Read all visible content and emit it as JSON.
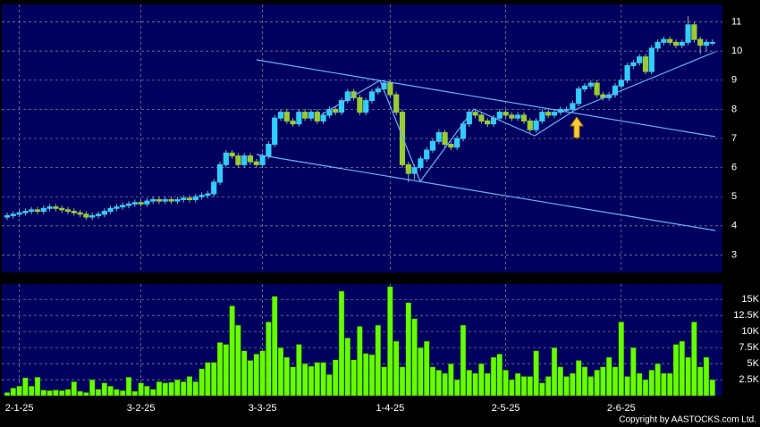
{
  "chart_data": {
    "type": "candlestick",
    "categories": [
      null,
      null,
      "2-1-25",
      null,
      null,
      null,
      null,
      null,
      null,
      null,
      null,
      null,
      null,
      null,
      null,
      null,
      null,
      null,
      null,
      null,
      null,
      null,
      "3-2-25",
      null,
      null,
      null,
      null,
      null,
      null,
      null,
      null,
      null,
      null,
      null,
      null,
      null,
      null,
      null,
      null,
      null,
      null,
      null,
      "3-3-25",
      null,
      null,
      null,
      null,
      null,
      null,
      null,
      null,
      null,
      null,
      null,
      null,
      null,
      null,
      null,
      null,
      null,
      null,
      null,
      null,
      "1-4-25",
      null,
      null,
      null,
      null,
      null,
      null,
      null,
      null,
      null,
      null,
      null,
      null,
      null,
      null,
      null,
      null,
      null,
      null,
      "2-5-25",
      null,
      null,
      null,
      null,
      null,
      null,
      null,
      null,
      null,
      null,
      null,
      null,
      null,
      null,
      null,
      null,
      null,
      null,
      "2-6-25",
      null,
      null,
      null,
      null,
      null,
      null,
      null,
      null,
      null,
      null,
      null,
      null,
      null,
      null,
      null
    ],
    "open": [
      4.3,
      4.35,
      4.4,
      4.45,
      4.5,
      4.55,
      4.5,
      4.6,
      4.65,
      4.6,
      4.55,
      4.5,
      4.45,
      4.4,
      4.3,
      4.35,
      4.4,
      4.5,
      4.6,
      4.65,
      4.7,
      4.75,
      4.8,
      4.75,
      4.85,
      4.9,
      4.85,
      4.9,
      4.85,
      4.9,
      4.95,
      4.9,
      5.0,
      5.05,
      5.1,
      5.5,
      6.1,
      6.5,
      6.4,
      6.1,
      6.4,
      6.2,
      6.1,
      6.4,
      6.8,
      7.7,
      7.9,
      7.6,
      7.5,
      7.9,
      7.7,
      7.9,
      7.6,
      7.8,
      8.0,
      7.9,
      8.3,
      8.6,
      8.4,
      7.9,
      8.3,
      8.6,
      8.7,
      8.9,
      8.5,
      7.9,
      6.1,
      5.8,
      6.0,
      6.3,
      6.6,
      6.9,
      7.2,
      6.8,
      6.7,
      7.0,
      7.5,
      7.9,
      7.8,
      7.6,
      7.5,
      7.7,
      7.9,
      7.8,
      7.7,
      7.8,
      7.6,
      7.3,
      7.6,
      7.9,
      7.8,
      7.9,
      8.0,
      8.0,
      8.2,
      8.7,
      8.8,
      8.9,
      8.5,
      8.4,
      8.5,
      8.8,
      9.0,
      9.5,
      9.6,
      9.8,
      9.3,
      10.1,
      10.3,
      10.4,
      10.3,
      10.2,
      10.3,
      10.9,
      10.4,
      10.2,
      10.3
    ],
    "high": [
      4.45,
      4.5,
      4.55,
      4.6,
      4.65,
      4.65,
      4.7,
      4.75,
      4.75,
      4.7,
      4.65,
      4.6,
      4.55,
      4.5,
      4.45,
      4.5,
      4.6,
      4.7,
      4.75,
      4.8,
      4.85,
      4.9,
      4.9,
      4.95,
      5.0,
      5.0,
      5.0,
      5.0,
      5.0,
      5.05,
      5.05,
      5.1,
      5.15,
      5.2,
      5.6,
      6.2,
      6.6,
      6.6,
      6.5,
      6.5,
      6.5,
      6.3,
      6.5,
      6.9,
      7.8,
      8.0,
      8.0,
      7.7,
      8.0,
      8.0,
      8.0,
      8.0,
      7.9,
      8.1,
      8.1,
      8.4,
      8.7,
      8.7,
      8.5,
      8.4,
      8.7,
      8.8,
      9.0,
      9.0,
      8.6,
      8.0,
      6.2,
      6.1,
      6.4,
      6.7,
      7.0,
      7.3,
      7.3,
      6.9,
      7.1,
      7.6,
      8.0,
      8.0,
      7.9,
      7.7,
      7.8,
      8.0,
      8.0,
      7.9,
      7.9,
      7.9,
      7.7,
      7.7,
      8.0,
      8.0,
      8.0,
      8.1,
      8.1,
      8.3,
      8.8,
      8.9,
      9.0,
      9.0,
      8.6,
      8.6,
      8.9,
      9.1,
      9.6,
      9.7,
      9.9,
      9.9,
      10.2,
      10.4,
      10.5,
      10.5,
      10.4,
      10.4,
      11.2,
      11.0,
      10.5,
      10.4,
      10.4
    ],
    "low": [
      4.2,
      4.25,
      4.3,
      4.35,
      4.4,
      4.4,
      4.4,
      4.5,
      4.5,
      4.45,
      4.4,
      4.35,
      4.3,
      4.2,
      4.2,
      4.25,
      4.3,
      4.4,
      4.5,
      4.55,
      4.6,
      4.65,
      4.65,
      4.65,
      4.75,
      4.75,
      4.75,
      4.75,
      4.75,
      4.8,
      4.8,
      4.8,
      4.9,
      4.95,
      5.0,
      5.4,
      6.0,
      6.3,
      6.0,
      6.0,
      6.1,
      6.0,
      6.0,
      6.3,
      6.7,
      7.6,
      7.5,
      7.4,
      7.4,
      7.6,
      7.6,
      7.5,
      7.5,
      7.7,
      7.8,
      7.8,
      8.2,
      8.3,
      7.8,
      7.8,
      8.2,
      8.5,
      8.6,
      8.4,
      7.8,
      6.0,
      5.5,
      5.6,
      5.9,
      6.2,
      6.5,
      6.8,
      6.7,
      6.6,
      6.6,
      6.9,
      7.4,
      7.7,
      7.5,
      7.4,
      7.4,
      7.6,
      7.7,
      7.6,
      7.6,
      7.5,
      7.2,
      7.2,
      7.5,
      7.7,
      7.7,
      7.8,
      7.9,
      7.9,
      8.1,
      8.6,
      8.7,
      8.4,
      8.3,
      8.3,
      8.4,
      8.7,
      8.9,
      9.4,
      9.5,
      9.2,
      9.2,
      10.0,
      10.2,
      10.2,
      10.1,
      10.1,
      10.2,
      10.3,
      9.9,
      10.0,
      10.2
    ],
    "close": [
      4.35,
      4.4,
      4.45,
      4.5,
      4.55,
      4.5,
      4.6,
      4.65,
      4.6,
      4.55,
      4.5,
      4.45,
      4.4,
      4.3,
      4.35,
      4.4,
      4.5,
      4.6,
      4.65,
      4.7,
      4.75,
      4.8,
      4.75,
      4.85,
      4.9,
      4.85,
      4.9,
      4.85,
      4.9,
      4.95,
      4.9,
      5.0,
      5.05,
      5.1,
      5.5,
      6.1,
      6.5,
      6.4,
      6.1,
      6.4,
      6.2,
      6.1,
      6.4,
      6.8,
      7.7,
      7.9,
      7.6,
      7.5,
      7.9,
      7.7,
      7.9,
      7.6,
      7.8,
      8.0,
      7.9,
      8.3,
      8.6,
      8.4,
      7.9,
      8.3,
      8.6,
      8.7,
      8.9,
      8.5,
      7.9,
      6.1,
      5.8,
      6.0,
      6.3,
      6.6,
      6.9,
      7.2,
      6.8,
      6.7,
      7.0,
      7.5,
      7.9,
      7.8,
      7.6,
      7.5,
      7.7,
      7.9,
      7.8,
      7.7,
      7.8,
      7.6,
      7.3,
      7.6,
      7.9,
      7.8,
      7.9,
      8.0,
      8.0,
      8.2,
      8.7,
      8.8,
      8.9,
      8.5,
      8.4,
      8.5,
      8.8,
      9.0,
      9.5,
      9.6,
      9.8,
      9.3,
      10.1,
      10.3,
      10.4,
      10.3,
      10.2,
      10.3,
      10.9,
      10.4,
      10.2,
      10.3,
      10.3
    ],
    "volume": [
      500,
      1200,
      1500,
      2800,
      1500,
      2900,
      900,
      800,
      900,
      800,
      1000,
      2200,
      700,
      500,
      2500,
      1000,
      2000,
      1500,
      1000,
      800,
      2900,
      700,
      2000,
      1500,
      1000,
      2200,
      2000,
      2100,
      2500,
      2200,
      3000,
      2200,
      4200,
      5200,
      5200,
      8300,
      8000,
      14000,
      11000,
      7000,
      5500,
      6500,
      7000,
      11500,
      15500,
      7500,
      6000,
      4500,
      8000,
      5000,
      4600,
      5200,
      5200,
      3300,
      5600,
      16300,
      9000,
      5600,
      10800,
      6600,
      6400,
      11000,
      4500,
      17000,
      8500,
      4500,
      14500,
      12000,
      7500,
      8500,
      4500,
      4000,
      3500,
      5000,
      2500,
      11000,
      4000,
      3500,
      5000,
      3500,
      6000,
      6500,
      4000,
      2500,
      3500,
      3000,
      3000,
      7000,
      2000,
      3000,
      7500,
      4500,
      3000,
      3500,
      5500,
      4500,
      3000,
      4000,
      4500,
      6000,
      4500,
      11500,
      3000,
      7500,
      3500,
      2500,
      4000,
      5000,
      3500,
      3500,
      8000,
      8500,
      6000,
      11500,
      4500,
      6000,
      2500
    ],
    "up_color": "#33ccff",
    "down_color": "#99cc33",
    "volume_color": "#66ff00",
    "ylim": [
      2.4,
      11.6
    ],
    "yticks": [
      3,
      4,
      5,
      6,
      7,
      8,
      9,
      10,
      11
    ],
    "volume_ylim": [
      0,
      17400
    ],
    "volume_yticks": [
      {
        "value": 2500,
        "label": "2.5K"
      },
      {
        "value": 5000,
        "label": "5K"
      },
      {
        "value": 7500,
        "label": "7.5K"
      },
      {
        "value": 10000,
        "label": "10K"
      },
      {
        "value": 12500,
        "label": "12.5K"
      },
      {
        "value": 15000,
        "label": "15K"
      }
    ],
    "grid": true,
    "copyright": "Copyright by AASTOCKS.com Ltd."
  }
}
